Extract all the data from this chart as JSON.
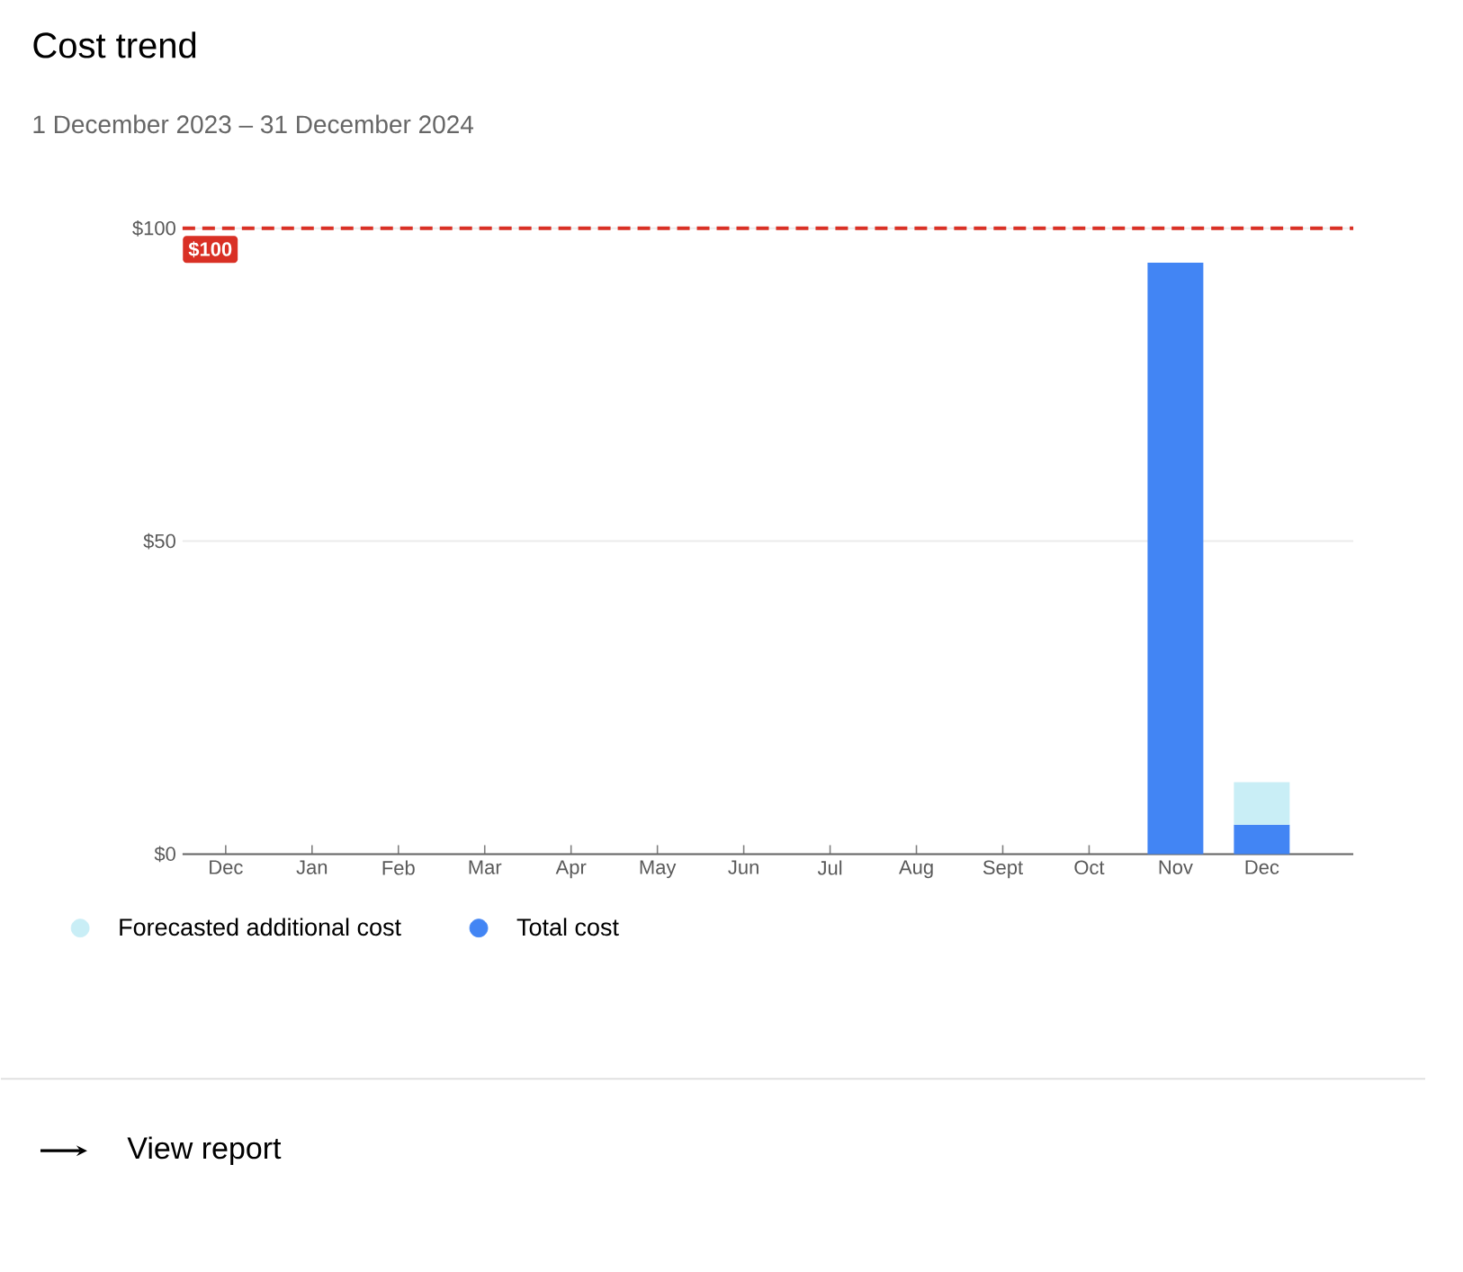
{
  "chart_data": {
    "type": "bar",
    "title": "Cost trend",
    "subtitle": "1 December 2023 – 31 December 2024",
    "categories": [
      "Dec",
      "Jan",
      "Feb",
      "Mar",
      "Apr",
      "May",
      "Jun",
      "Jul",
      "Aug",
      "Sept",
      "Oct",
      "Nov",
      "Dec"
    ],
    "stacked": true,
    "series": [
      {
        "name": "Total cost",
        "color": "#4285f4",
        "values": [
          0,
          0,
          0,
          0,
          0,
          0,
          0,
          0,
          0,
          0,
          0,
          94.5,
          4.7
        ]
      },
      {
        "name": "Forecasted additional cost",
        "color": "#c9eef6",
        "values": [
          null,
          null,
          null,
          null,
          null,
          null,
          null,
          null,
          null,
          null,
          null,
          null,
          6.8
        ]
      }
    ],
    "ylim": [
      0,
      100
    ],
    "yticks": [
      {
        "value": 0,
        "label": "$0"
      },
      {
        "value": 50,
        "label": "$50"
      },
      {
        "value": 100,
        "label": "$100"
      }
    ],
    "grid": "y",
    "legend": "bottom",
    "ref_lines": [
      {
        "axis": "y",
        "value": 100,
        "label": "$100",
        "color": "#d93025",
        "line_style": "dashed"
      }
    ],
    "annotations": [
      "View report"
    ]
  }
}
